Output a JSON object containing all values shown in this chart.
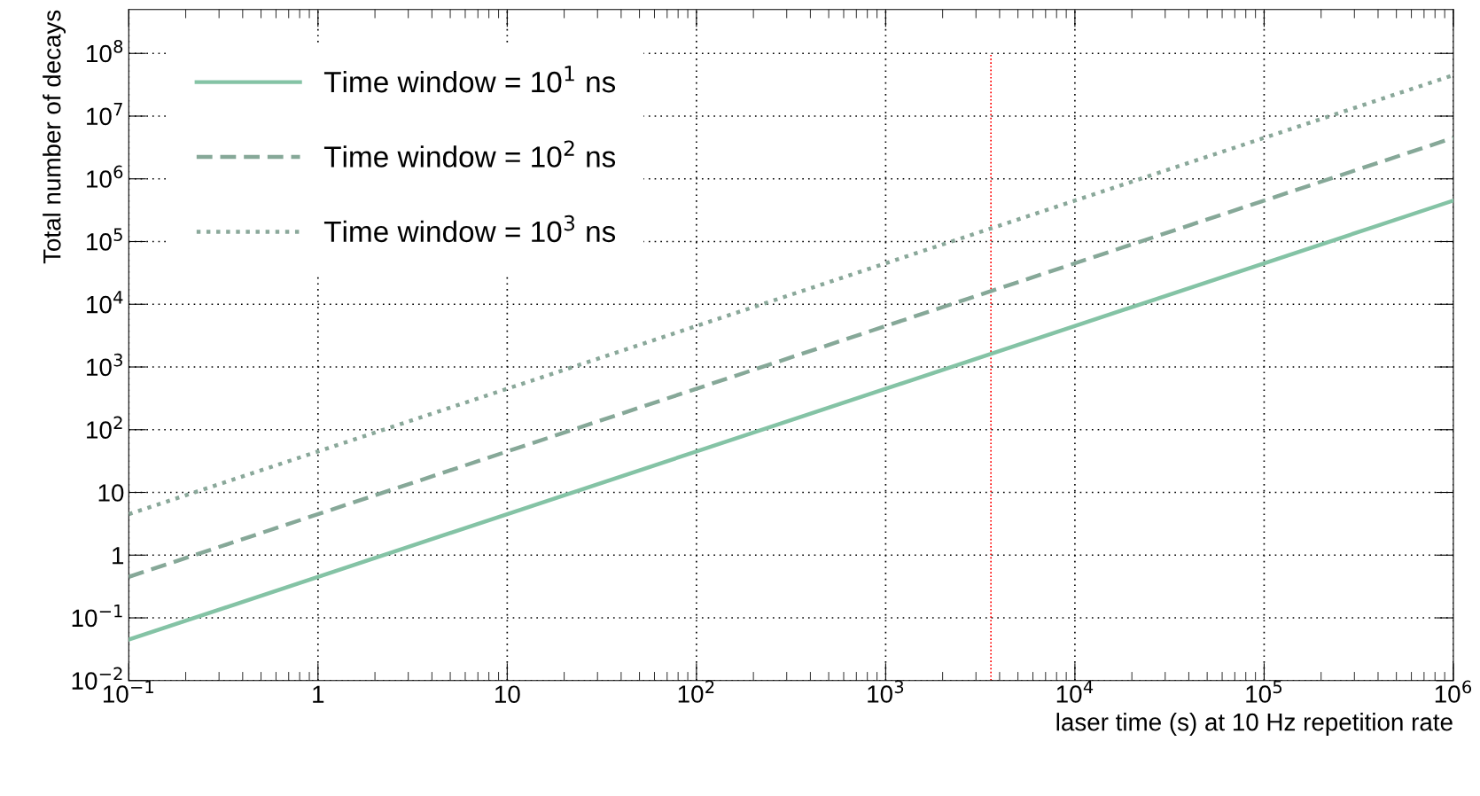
{
  "chart_data": {
    "type": "line",
    "xlabel": "laser time (s) at 10 Hz repetition rate",
    "ylabel": "Total number of decays",
    "x": [
      0.1,
      1000000
    ],
    "series": [
      {
        "name": "Time window = 10$^{1}$ ns",
        "color": "#84c3a5",
        "line_style": "solid",
        "values": [
          0.045,
          450000
        ]
      },
      {
        "name": "Time window = 10$^{2}$ ns",
        "color": "#86a898",
        "line_style": "dashed",
        "values": [
          0.45,
          4500000
        ]
      },
      {
        "name": "Time window = 10$^{3}$ ns",
        "color": "#8aa89a",
        "line_style": "dotted",
        "values": [
          4.5,
          45000000
        ]
      }
    ],
    "log": "xy",
    "xlim": [
      0.1,
      1000000
    ],
    "ylim": [
      0.01,
      500000000
    ],
    "xticks": [
      {
        "value": 0.1,
        "label": "10$^{−1}$"
      },
      1,
      10,
      {
        "value": 100,
        "label": "10$^{2}$"
      },
      {
        "value": 1000,
        "label": "10$^{3}$"
      },
      {
        "value": 10000,
        "label": "10$^{4}$"
      },
      {
        "value": 100000,
        "label": "10$^{5}$"
      },
      {
        "value": 1000000,
        "label": "10$^{6}$"
      }
    ],
    "yticks": [
      {
        "value": 0.01,
        "label": "10$^{−2}$"
      },
      {
        "value": 0.1,
        "label": "10$^{−1}$"
      },
      1,
      10,
      {
        "value": 100,
        "label": "10$^{2}$"
      },
      {
        "value": 1000,
        "label": "10$^{3}$"
      },
      {
        "value": 10000,
        "label": "10$^{4}$"
      },
      {
        "value": 100000,
        "label": "10$^{5}$"
      },
      {
        "value": 1000000,
        "label": "10$^{6}$"
      },
      {
        "value": 10000000,
        "label": "10$^{7}$"
      },
      {
        "value": 100000000,
        "label": "10$^{8}$"
      }
    ],
    "ref_lines": [
      {
        "axis": "x",
        "value": 3600,
        "color": "#ff0000",
        "line_style": "dotted"
      }
    ],
    "grid": true,
    "legend": "top left",
    "marker": "none"
  }
}
